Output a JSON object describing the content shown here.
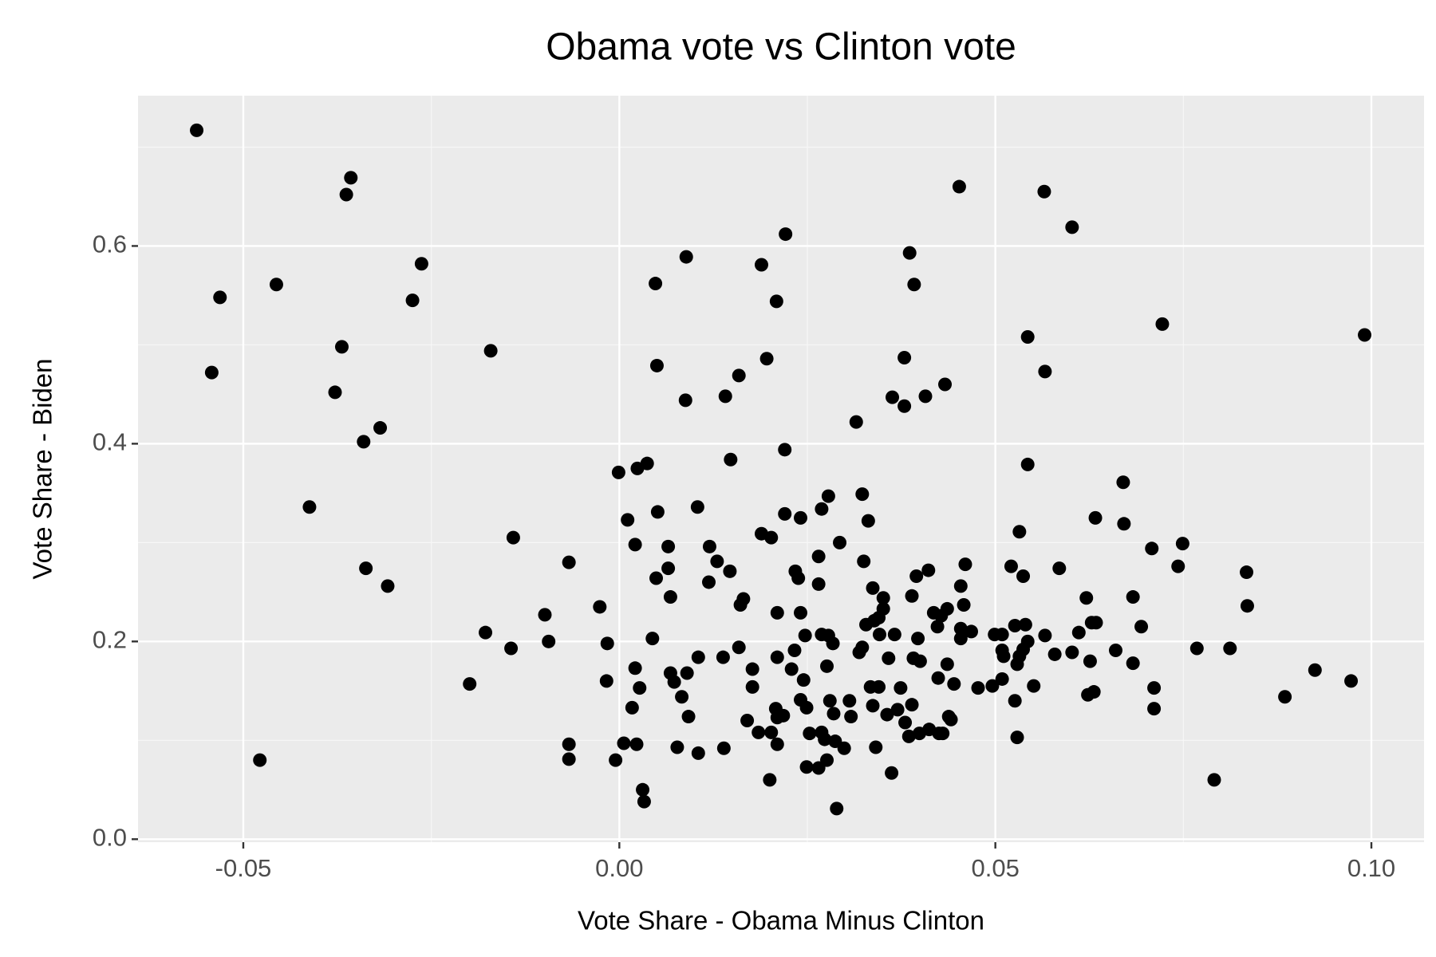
{
  "chart_data": {
    "type": "scatter",
    "title": "Obama vote vs Clinton vote",
    "x_label": "Vote Share - Obama Minus Clinton",
    "y_label": "Vote Share - Biden",
    "xlim": [
      -0.064,
      0.107
    ],
    "ylim": [
      -0.003,
      0.752
    ],
    "xticks": [
      -0.05,
      {
        "value": 0,
        "label": "0.00"
      },
      0.05,
      {
        "value": 0.1,
        "label": "0.10"
      }
    ],
    "yticks": [
      {
        "value": 0,
        "label": "0.0"
      },
      0.2,
      0.4,
      0.6
    ],
    "xminor": [
      -0.025,
      0.025,
      0.075
    ],
    "yminor": [
      0.1,
      0.3,
      0.5,
      0.7
    ],
    "grid": true,
    "color": "#000000",
    "x": [
      -0.0562,
      -0.0531,
      -0.0542,
      -0.0478,
      -0.0456,
      -0.0412,
      -0.0357,
      -0.0363,
      -0.0369,
      -0.0378,
      -0.034,
      -0.0318,
      -0.0337,
      -0.0308,
      -0.0263,
      -0.0275,
      -0.0171,
      -0.0141,
      -0.0178,
      -0.0144,
      -0.0199,
      -0.0099,
      -0.0094,
      -0.0067,
      -0.0067,
      -0.0067,
      -0.0026,
      -0.0016,
      -0.0017,
      -0.0005,
      -0.0001,
      0.0011,
      0.0021,
      0.0024,
      0.0037,
      0.0021,
      0.0027,
      0.0017,
      0.0006,
      0.0023,
      0.0031,
      0.0033,
      0.0048,
      0.005,
      0.0051,
      0.0065,
      0.0065,
      0.0049,
      0.0068,
      0.0044,
      0.0068,
      0.0073,
      0.0083,
      0.0077,
      0.0089,
      0.0088,
      0.009,
      0.0092,
      0.0105,
      0.0104,
      0.0105,
      0.012,
      0.013,
      0.0119,
      0.0147,
      0.0141,
      0.0148,
      0.0159,
      0.0138,
      0.0139,
      0.0165,
      0.0161,
      0.0159,
      0.017,
      0.0177,
      0.0177,
      0.0189,
      0.0196,
      0.0189,
      0.0202,
      0.0209,
      0.0221,
      0.022,
      0.022,
      0.0241,
      0.021,
      0.021,
      0.0208,
      0.021,
      0.021,
      0.0185,
      0.0202,
      0.0218,
      0.02,
      0.0229,
      0.0233,
      0.0234,
      0.0238,
      0.0241,
      0.0247,
      0.0245,
      0.0241,
      0.0249,
      0.0253,
      0.0249,
      0.0265,
      0.0265,
      0.0269,
      0.0278,
      0.0269,
      0.0278,
      0.0284,
      0.0276,
      0.028,
      0.0285,
      0.0269,
      0.0273,
      0.0265,
      0.0276,
      0.0287,
      0.0289,
      0.0293,
      0.0299,
      0.0308,
      0.0306,
      0.0315,
      0.0323,
      0.0331,
      0.0325,
      0.0337,
      0.0319,
      0.0323,
      0.0328,
      0.0339,
      0.0345,
      0.0351,
      0.0351,
      0.0346,
      0.0334,
      0.0345,
      0.0337,
      0.0356,
      0.0341,
      0.0362,
      0.0358,
      0.0363,
      0.0366,
      0.0374,
      0.037,
      0.0379,
      0.0379,
      0.0386,
      0.0392,
      0.0389,
      0.0395,
      0.0411,
      0.0391,
      0.04,
      0.0397,
      0.0389,
      0.0385,
      0.038,
      0.0399,
      0.0412,
      0.0407,
      0.0433,
      0.0418,
      0.0423,
      0.0436,
      0.0428,
      0.0424,
      0.0436,
      0.0445,
      0.0425,
      0.043,
      0.0438,
      0.0441,
      0.0452,
      0.0454,
      0.046,
      0.0458,
      0.0454,
      0.0454,
      0.0468,
      0.0477,
      0.0496,
      0.0499,
      0.0509,
      0.0509,
      0.0511,
      0.0509,
      0.0521,
      0.0526,
      0.0532,
      0.0537,
      0.0529,
      0.0532,
      0.0537,
      0.0529,
      0.0526,
      0.0543,
      0.0543,
      0.054,
      0.0543,
      0.0551,
      0.0566,
      0.0566,
      0.0565,
      0.0579,
      0.0585,
      0.0602,
      0.0602,
      0.0611,
      0.0621,
      0.0626,
      0.0623,
      0.0631,
      0.0628,
      0.0634,
      0.0633,
      0.066,
      0.067,
      0.0671,
      0.0683,
      0.0683,
      0.0694,
      0.0708,
      0.0711,
      0.0711,
      0.0722,
      0.0743,
      0.0749,
      0.0768,
      0.0791,
      0.0812,
      0.0835,
      0.0834,
      0.0885,
      0.0925,
      0.0973,
      0.0991
    ],
    "y": [
      0.717,
      0.548,
      0.472,
      0.08,
      0.561,
      0.336,
      0.669,
      0.652,
      0.498,
      0.452,
      0.402,
      0.416,
      0.274,
      0.256,
      0.582,
      0.545,
      0.494,
      0.305,
      0.209,
      0.193,
      0.157,
      0.227,
      0.2,
      0.28,
      0.096,
      0.081,
      0.235,
      0.198,
      0.16,
      0.08,
      0.371,
      0.323,
      0.298,
      0.375,
      0.38,
      0.173,
      0.153,
      0.133,
      0.097,
      0.096,
      0.05,
      0.038,
      0.562,
      0.479,
      0.331,
      0.296,
      0.274,
      0.264,
      0.245,
      0.203,
      0.168,
      0.159,
      0.144,
      0.093,
      0.589,
      0.444,
      0.168,
      0.124,
      0.087,
      0.336,
      0.184,
      0.296,
      0.281,
      0.26,
      0.271,
      0.448,
      0.384,
      0.469,
      0.184,
      0.092,
      0.243,
      0.237,
      0.194,
      0.12,
      0.172,
      0.154,
      0.581,
      0.486,
      0.309,
      0.305,
      0.544,
      0.612,
      0.394,
      0.329,
      0.325,
      0.229,
      0.184,
      0.132,
      0.123,
      0.096,
      0.108,
      0.108,
      0.125,
      0.06,
      0.172,
      0.191,
      0.271,
      0.264,
      0.229,
      0.206,
      0.161,
      0.141,
      0.133,
      0.107,
      0.073,
      0.258,
      0.286,
      0.334,
      0.347,
      0.207,
      0.206,
      0.198,
      0.175,
      0.14,
      0.127,
      0.108,
      0.101,
      0.072,
      0.08,
      0.099,
      0.031,
      0.3,
      0.092,
      0.124,
      0.14,
      0.422,
      0.349,
      0.322,
      0.281,
      0.254,
      0.189,
      0.194,
      0.217,
      0.221,
      0.224,
      0.233,
      0.244,
      0.207,
      0.154,
      0.154,
      0.135,
      0.126,
      0.093,
      0.067,
      0.183,
      0.447,
      0.207,
      0.153,
      0.131,
      0.487,
      0.438,
      0.593,
      0.561,
      0.246,
      0.266,
      0.272,
      0.183,
      0.18,
      0.203,
      0.136,
      0.104,
      0.118,
      0.107,
      0.111,
      0.448,
      0.46,
      0.229,
      0.215,
      0.233,
      0.226,
      0.163,
      0.177,
      0.157,
      0.107,
      0.107,
      0.124,
      0.121,
      0.66,
      0.256,
      0.278,
      0.237,
      0.213,
      0.203,
      0.21,
      0.153,
      0.155,
      0.207,
      0.207,
      0.191,
      0.185,
      0.162,
      0.276,
      0.216,
      0.311,
      0.266,
      0.177,
      0.185,
      0.192,
      0.103,
      0.14,
      0.508,
      0.379,
      0.217,
      0.2,
      0.155,
      0.473,
      0.206,
      0.655,
      0.187,
      0.274,
      0.619,
      0.189,
      0.209,
      0.244,
      0.18,
      0.146,
      0.149,
      0.219,
      0.219,
      0.325,
      0.191,
      0.361,
      0.319,
      0.178,
      0.245,
      0.215,
      0.294,
      0.153,
      0.132,
      0.521,
      0.276,
      0.299,
      0.193,
      0.06,
      0.193,
      0.236,
      0.27,
      0.144,
      0.171,
      0.16,
      0.51
    ]
  }
}
